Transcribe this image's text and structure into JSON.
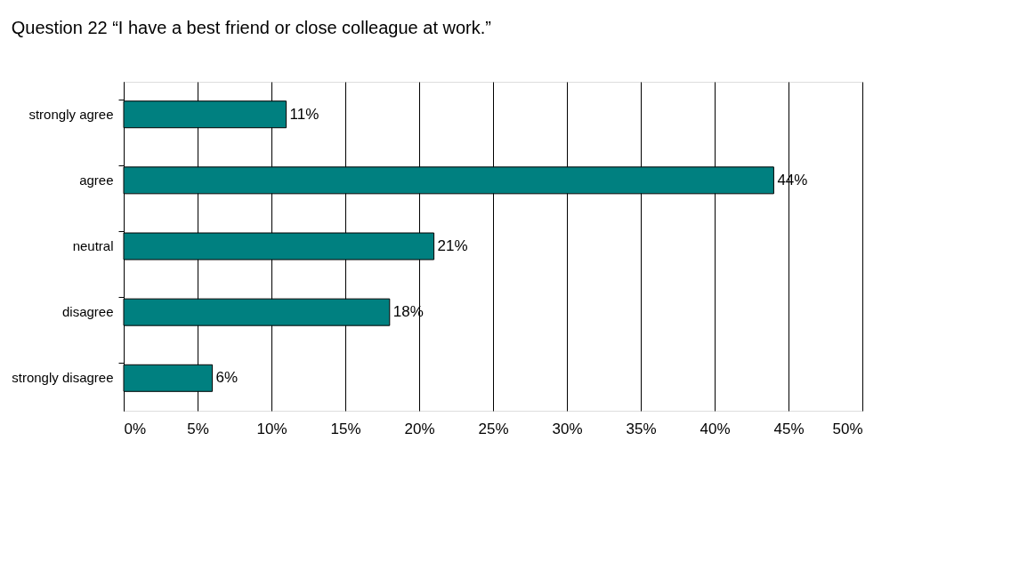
{
  "chart_data": {
    "type": "bar",
    "orientation": "horizontal",
    "title": "Question 22     “I have a best friend or close colleague at work.”",
    "categories": [
      "strongly agree",
      "agree",
      "neutral",
      "disagree",
      "strongly disagree"
    ],
    "values": [
      11,
      44,
      21,
      18,
      6
    ],
    "value_labels": [
      "11%",
      "44%",
      "21%",
      "18%",
      "6%"
    ],
    "color": "#008080",
    "xlim": [
      0,
      50
    ],
    "xticks": [
      {
        "value": 0,
        "label": "0%"
      },
      {
        "value": 5,
        "label": "5%"
      },
      {
        "value": 10,
        "label": "10%"
      },
      {
        "value": 15,
        "label": "15%"
      },
      {
        "value": 20,
        "label": "20%"
      },
      {
        "value": 25,
        "label": "25%"
      },
      {
        "value": 30,
        "label": "30%"
      },
      {
        "value": 35,
        "label": "35%"
      },
      {
        "value": 40,
        "label": "40%"
      },
      {
        "value": 45,
        "label": "45%"
      },
      {
        "value": 50,
        "label": "50%"
      }
    ],
    "grid": "x"
  }
}
